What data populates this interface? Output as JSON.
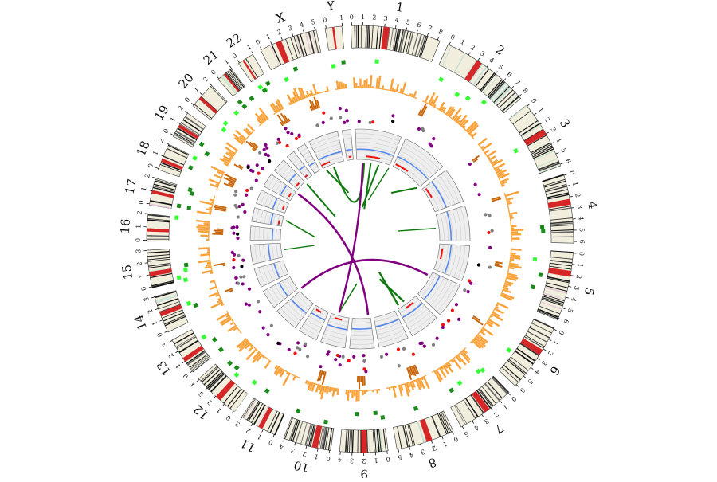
{
  "circos": {
    "chromosomes": [
      {
        "name": "1",
        "ticks": [
          "0",
          "1",
          "2",
          "3",
          "4",
          "5",
          "6",
          "7",
          "8"
        ]
      },
      {
        "name": "2",
        "ticks": [
          "0",
          "1",
          "2",
          "3",
          "4",
          "5",
          "6",
          "7",
          "8"
        ]
      },
      {
        "name": "3",
        "ticks": [
          "0",
          "1",
          "2",
          "3",
          "4",
          "5",
          "6"
        ]
      },
      {
        "name": "4",
        "ticks": [
          "0",
          "1",
          "2",
          "3",
          "4",
          "5",
          "6"
        ]
      },
      {
        "name": "5",
        "ticks": [
          "0",
          "1",
          "2",
          "3",
          "4",
          "5",
          "6"
        ]
      },
      {
        "name": "6",
        "ticks": [
          "0",
          "1",
          "2",
          "3",
          "4",
          "5",
          "6"
        ]
      },
      {
        "name": "7",
        "ticks": [
          "0",
          "1",
          "2",
          "3",
          "4",
          "5"
        ]
      },
      {
        "name": "8",
        "ticks": [
          "0",
          "1",
          "2",
          "3",
          "4",
          "5"
        ]
      },
      {
        "name": "9",
        "ticks": [
          "0",
          "1",
          "2",
          "3",
          "4"
        ]
      },
      {
        "name": "10",
        "ticks": [
          "0",
          "1",
          "2",
          "3",
          "4"
        ]
      },
      {
        "name": "11",
        "ticks": [
          "0",
          "1",
          "2",
          "3"
        ]
      },
      {
        "name": "12",
        "ticks": [
          "0",
          "1",
          "2",
          "3",
          "4"
        ]
      },
      {
        "name": "13",
        "ticks": [
          "0",
          "1",
          "2",
          "3"
        ]
      },
      {
        "name": "14",
        "ticks": [
          "0",
          "1",
          "2",
          "3"
        ]
      },
      {
        "name": "15",
        "ticks": [
          "0",
          "1",
          "2",
          "3"
        ]
      },
      {
        "name": "16",
        "ticks": [
          "0",
          "1",
          "2"
        ]
      },
      {
        "name": "17",
        "ticks": [
          "0",
          "1",
          "2"
        ]
      },
      {
        "name": "18",
        "ticks": [
          "0",
          "1",
          "2"
        ]
      },
      {
        "name": "19",
        "ticks": [
          "0",
          "1",
          "2"
        ]
      },
      {
        "name": "20",
        "ticks": [
          "0",
          "1",
          "2"
        ]
      },
      {
        "name": "21",
        "ticks": [
          "0",
          "1"
        ]
      },
      {
        "name": "22",
        "ticks": [
          "0",
          "1"
        ]
      },
      {
        "name": "X",
        "ticks": [
          "0",
          "1",
          "2",
          "3",
          "4",
          "5"
        ]
      },
      {
        "name": "Y",
        "ticks": [
          "0",
          "1"
        ]
      }
    ],
    "colors": {
      "ideogram_dark": "#111111",
      "ideogram_light": "#f1eedd",
      "centromere": "#d62728",
      "snv_green": "#33ff33",
      "snv_darkgreen": "#1a8a1a",
      "histogram_light": "#f9a23a",
      "histogram_dark": "#c8650a",
      "scatter_purple": "#800080",
      "scatter_gray": "#808080",
      "scatter_red": "#ee1111",
      "scatter_black": "#000000",
      "cnv_bg": "#eeeeee",
      "cnv_blue": "#5588ee",
      "cnv_red": "#ee1111",
      "link_green": "#107a10",
      "link_purple": "#800080"
    }
  }
}
